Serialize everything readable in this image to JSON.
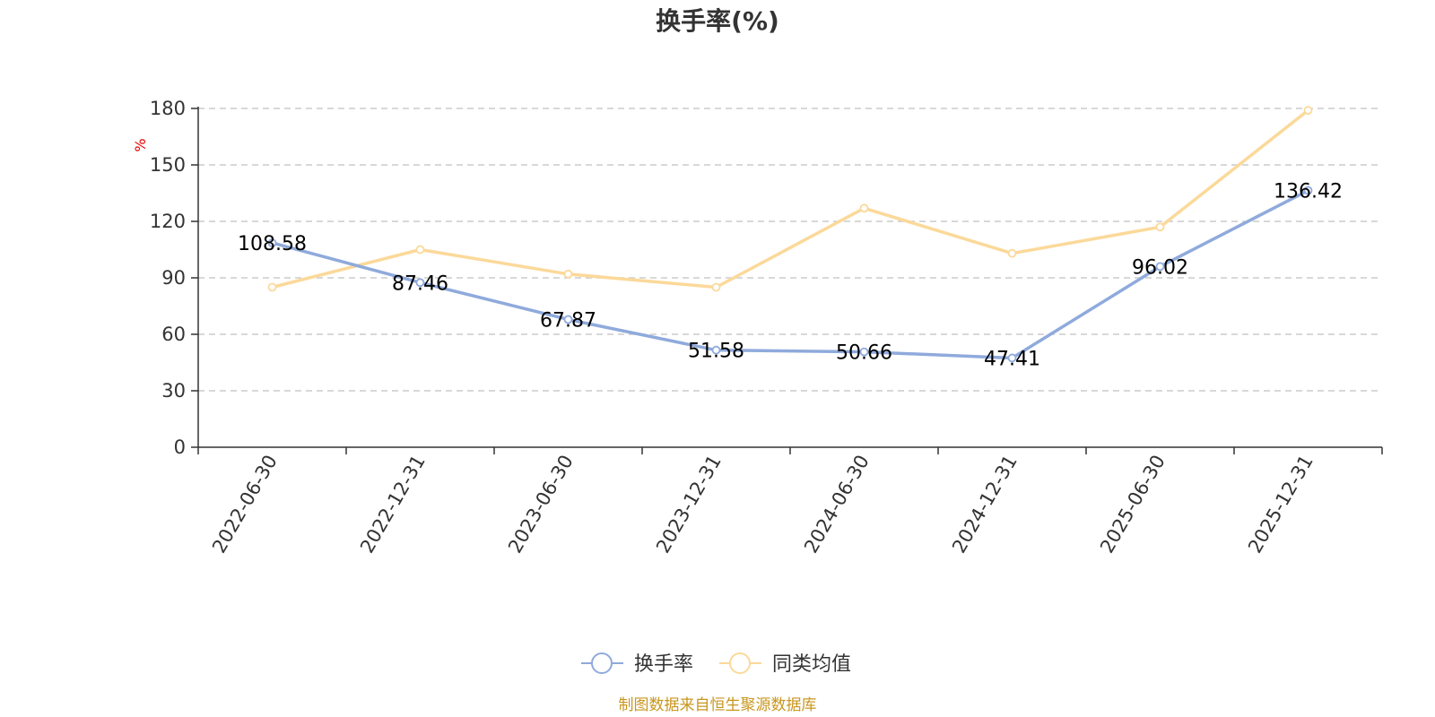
{
  "chart_data": {
    "type": "line",
    "title": "换手率(%)",
    "ylabel": "%",
    "xlabel": "",
    "ylim": [
      0,
      180
    ],
    "yticks": [
      0,
      30,
      60,
      90,
      120,
      150,
      180
    ],
    "grid": true,
    "legend_position": "bottom",
    "categories": [
      "2022-06-30",
      "2022-12-31",
      "2023-06-30",
      "2023-12-31",
      "2024-06-30",
      "2024-12-31",
      "2025-06-30",
      "2025-12-31"
    ],
    "series": [
      {
        "name": "换手率",
        "color": "#8faadc",
        "values": [
          108.58,
          87.46,
          67.87,
          51.58,
          50.66,
          47.41,
          96.02,
          136.42
        ],
        "labels": [
          "108.58",
          "87.46",
          "67.87",
          "51.58",
          "50.66",
          "47.41",
          "96.02",
          "136.42"
        ]
      },
      {
        "name": "同类均值",
        "color": "#fbd99a",
        "values": [
          85,
          105,
          92,
          85,
          127,
          103,
          117,
          179
        ]
      }
    ],
    "source": "制图数据来自恒生聚源数据库"
  }
}
